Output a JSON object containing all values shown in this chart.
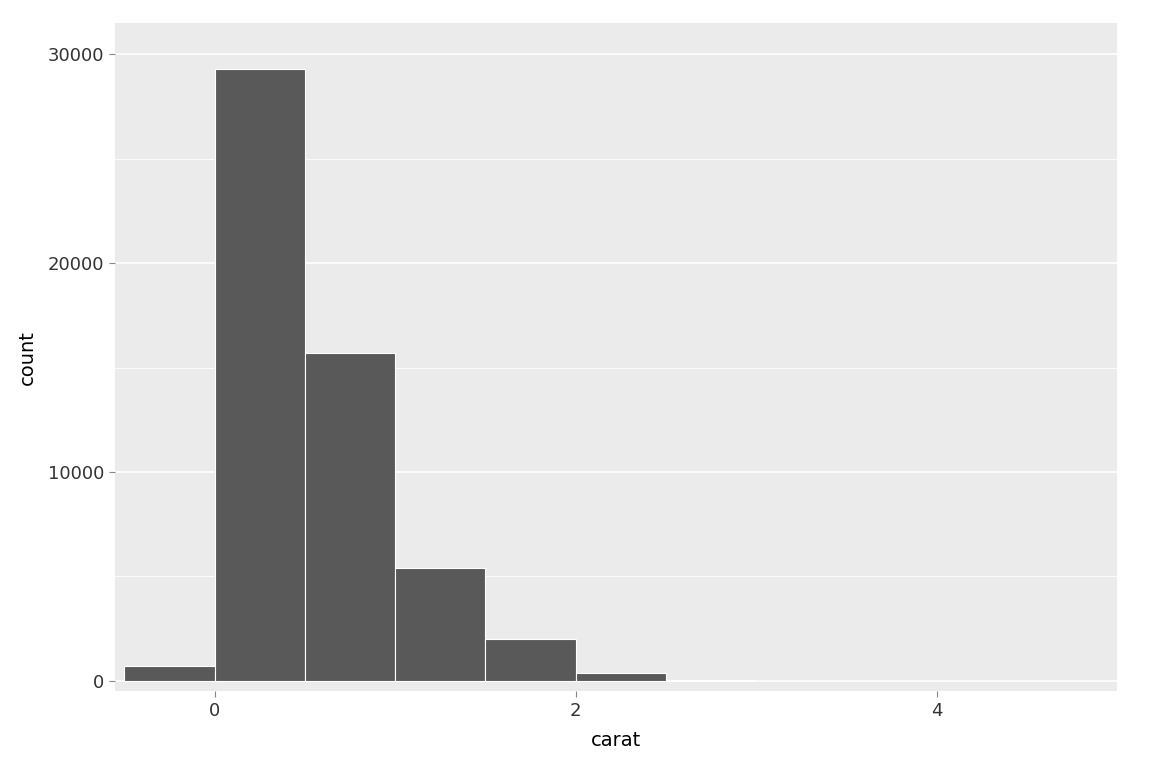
{
  "title": "",
  "xlabel": "carat",
  "ylabel": "count",
  "xlim": [
    -0.55,
    5.0
  ],
  "ylim": [
    -500,
    31500
  ],
  "xticks": [
    0,
    2,
    4
  ],
  "yticks": [
    0,
    10000,
    20000,
    30000
  ],
  "ytick_labels": [
    "0",
    "10000",
    "20000",
    "30000"
  ],
  "bar_color": "#595959",
  "figure_background": "#FFFFFF",
  "panel_background": "#EBEBEB",
  "grid_color": "#FFFFFF",
  "bins_left_edges": [
    -0.5,
    0.0,
    0.5,
    1.0,
    1.5,
    2.0,
    2.5
  ],
  "bin_heights": [
    700,
    29300,
    15700,
    5400,
    2000,
    350,
    50
  ],
  "bin_width": 0.5,
  "label_fontsize": 14,
  "tick_fontsize": 13
}
